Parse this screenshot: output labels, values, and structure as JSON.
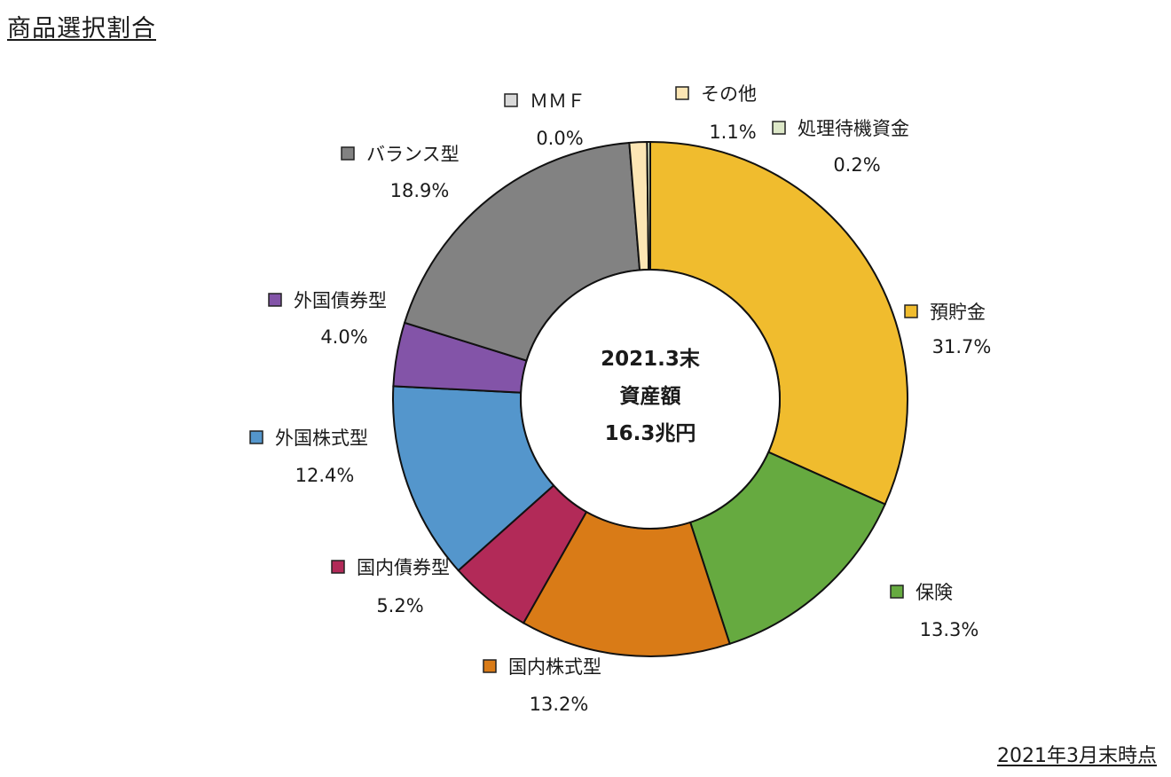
{
  "header": {
    "title": "商品選択割合",
    "as_of": "2021年3月末時点"
  },
  "chart_data": {
    "type": "pie",
    "center_text": [
      "2021.3末",
      "資産額",
      "16.3兆円"
    ],
    "slices": [
      {
        "label": "預貯金",
        "value": 31.7,
        "pct_label": "31.7%",
        "color": "#F0BC2E"
      },
      {
        "label": "保険",
        "value": 13.3,
        "pct_label": "13.3%",
        "color": "#66AA40"
      },
      {
        "label": "国内株式型",
        "value": 13.2,
        "pct_label": "13.2%",
        "color": "#D97B17"
      },
      {
        "label": "国内債券型",
        "value": 5.2,
        "pct_label": "5.2%",
        "color": "#B22A58"
      },
      {
        "label": "外国株式型",
        "value": 12.4,
        "pct_label": "12.4%",
        "color": "#5496CC"
      },
      {
        "label": "外国債券型",
        "value": 4.0,
        "pct_label": "4.0%",
        "color": "#8354A8"
      },
      {
        "label": "バランス型",
        "value": 18.9,
        "pct_label": "18.9%",
        "color": "#828282"
      },
      {
        "label": "ＭＭＦ",
        "value": 0.0,
        "pct_label": "0.0%",
        "color": "#D9D9D9"
      },
      {
        "label": "その他",
        "value": 1.1,
        "pct_label": "1.1%",
        "color": "#FCE6B4"
      },
      {
        "label": "処理待機資金",
        "value": 0.2,
        "pct_label": "0.2%",
        "color": "#DDE8C8"
      }
    ]
  }
}
